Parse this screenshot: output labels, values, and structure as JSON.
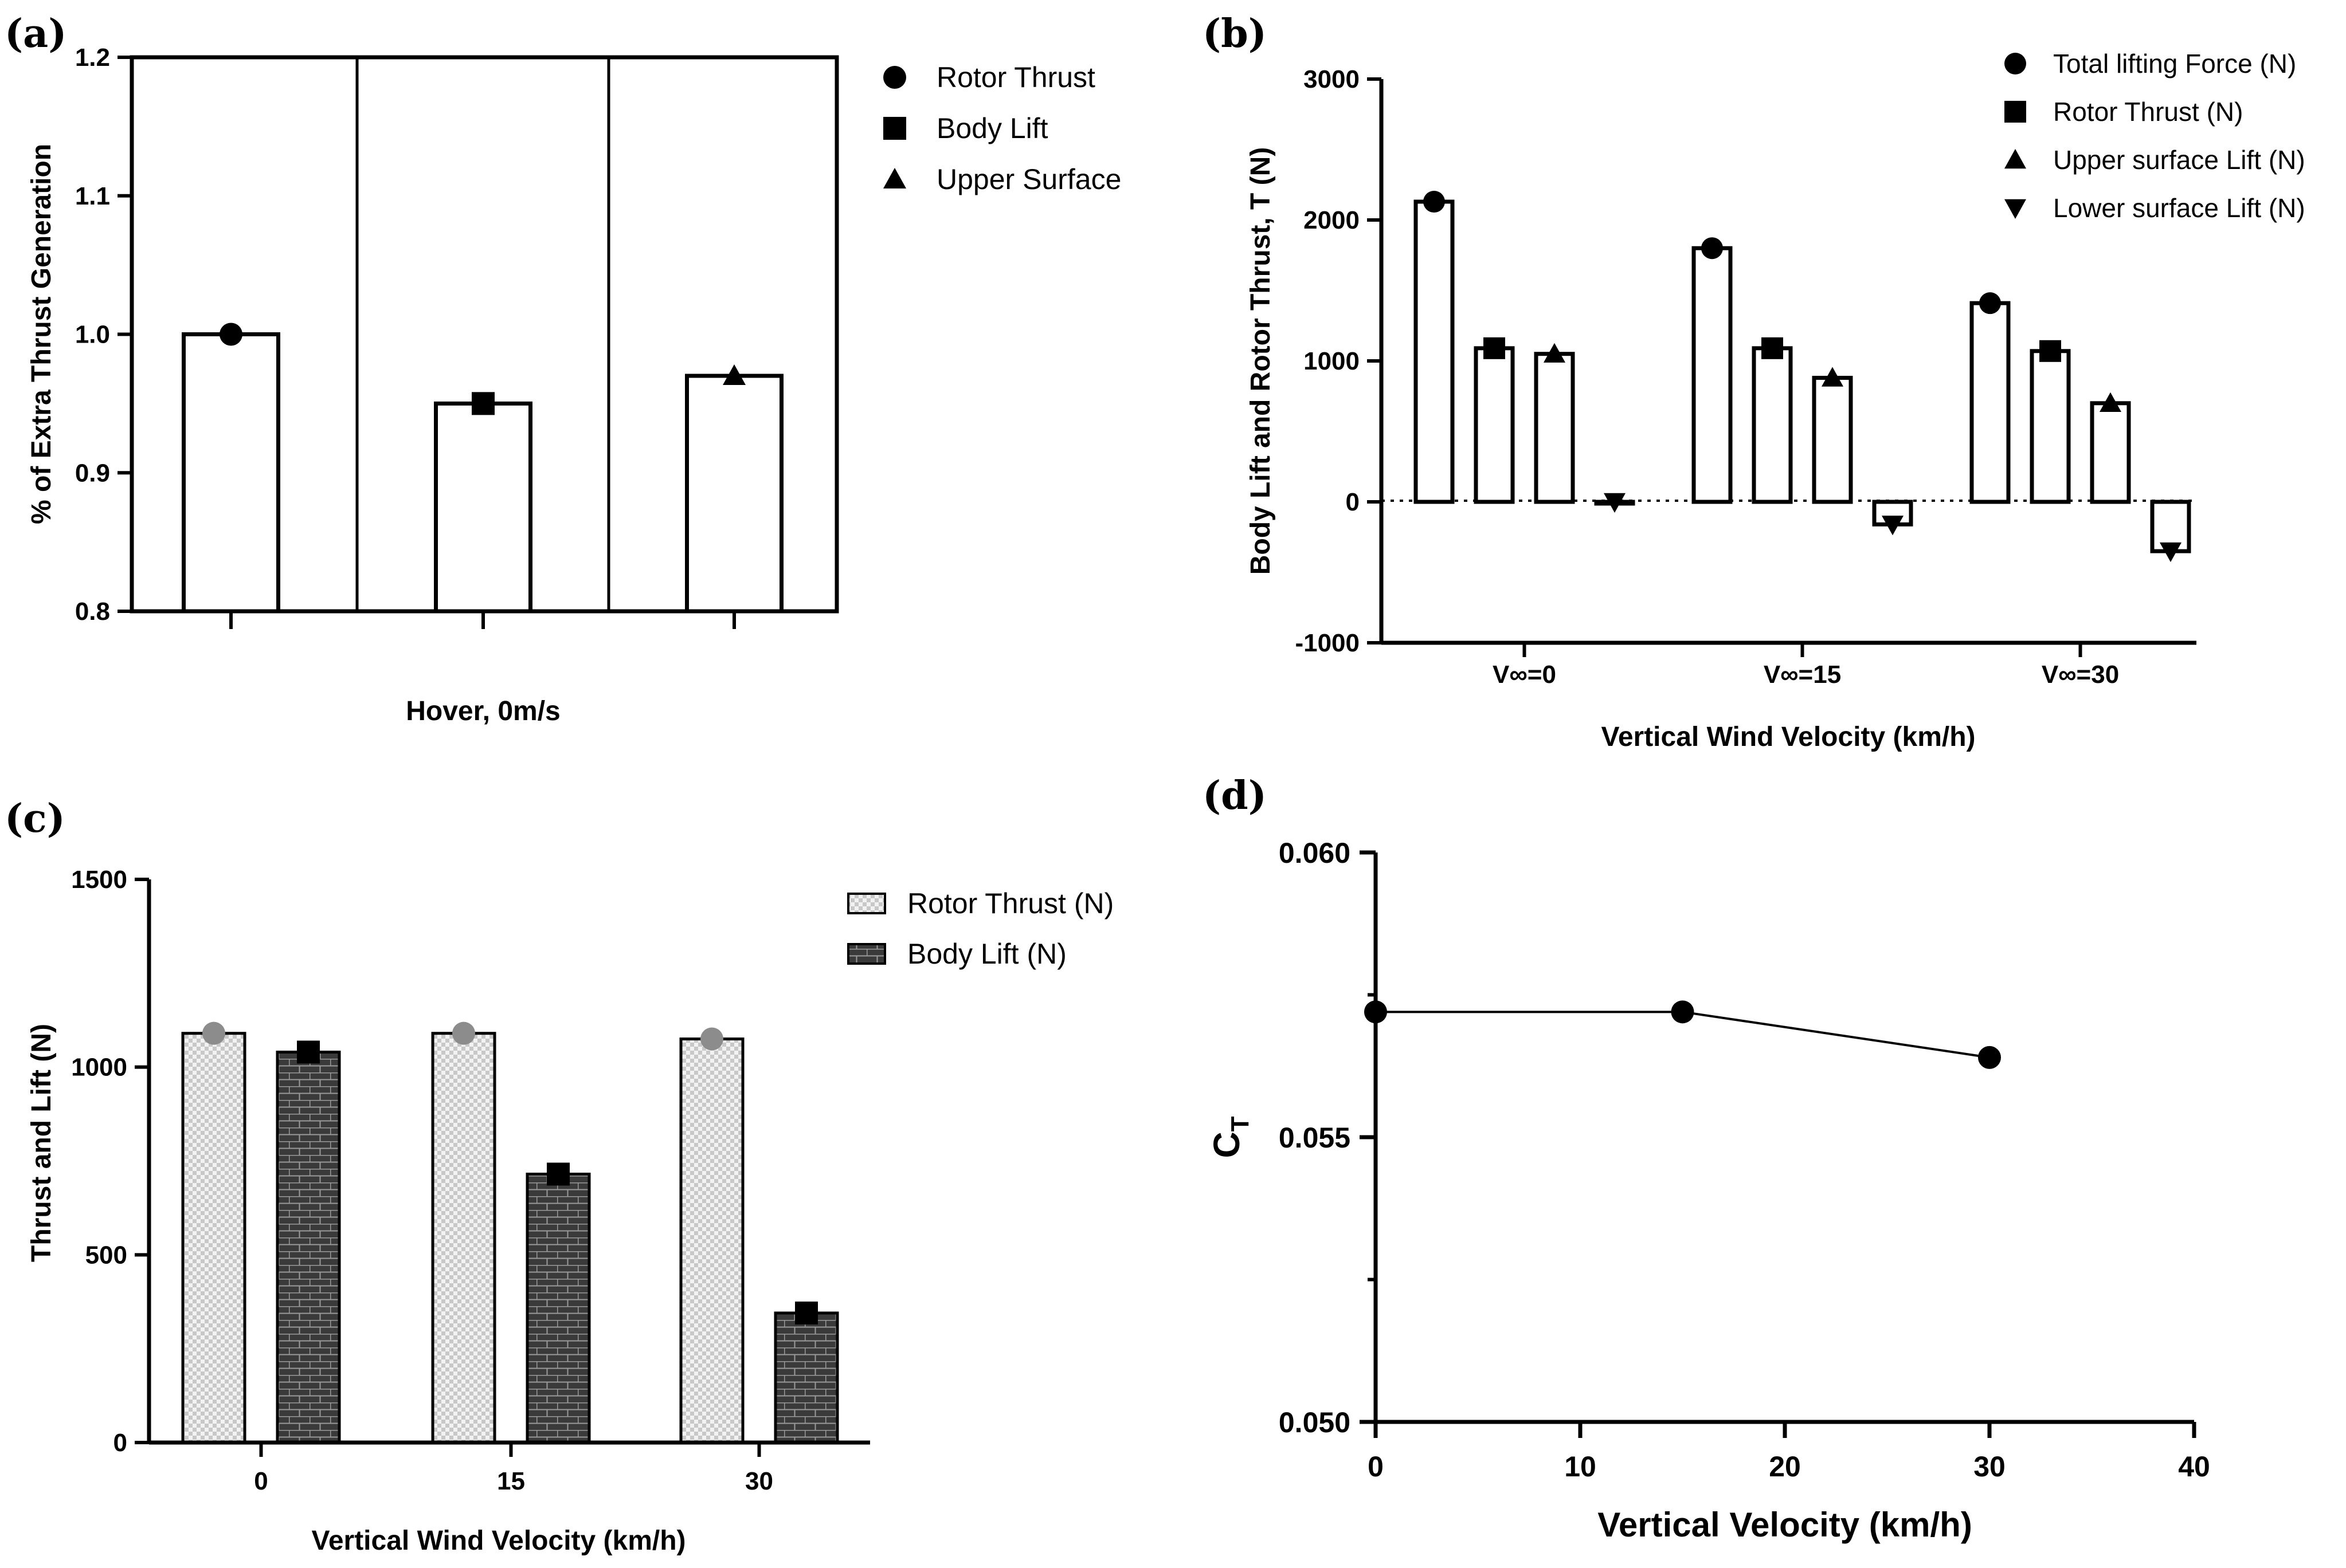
{
  "panels": {
    "a": {
      "label": "(a)"
    },
    "b": {
      "label": "(b)"
    },
    "c": {
      "label": "(c)"
    },
    "d": {
      "label": "(d)"
    }
  },
  "colors": {
    "ink": "#000000",
    "hatch_light": "#c8c8c8",
    "body_dark": "#3a3a3a",
    "marker_gray": "#8c8c8c"
  },
  "chart_data": [
    {
      "panel": "a",
      "type": "bar",
      "title": "",
      "xlabel": "Hover, 0m/s",
      "ylabel": "% of Extra Thrust  Generation",
      "ylim": [
        0.8,
        1.2
      ],
      "yticks": [
        "0.8",
        "0.9",
        "1.0",
        "1.1",
        "1.2"
      ],
      "categories": [
        "Rotor Thrust",
        "Body Lift",
        "Upper Surface"
      ],
      "values": [
        1.0,
        0.95,
        0.97
      ],
      "markers": [
        "circle",
        "square",
        "triangle"
      ],
      "legend": [
        "Rotor Thrust",
        "Body Lift",
        "Upper Surface"
      ],
      "legend_position": "right"
    },
    {
      "panel": "b",
      "type": "bar",
      "title": "",
      "xlabel": "Vertical Wind Velocity (km/h)",
      "ylabel": "Body Lift and Rotor Thrust, T (N)",
      "ylim": [
        -1000,
        3000
      ],
      "yticks": [
        "-1000",
        "0",
        "1000",
        "2000",
        "3000"
      ],
      "categories": [
        "V∞=0",
        "V∞=15",
        "V∞=30"
      ],
      "series": [
        {
          "name": "Total lifting Force (N)",
          "marker": "circle",
          "values": [
            2130,
            1800,
            1410
          ]
        },
        {
          "name": "Rotor Thrust (N)",
          "marker": "square",
          "values": [
            1090,
            1090,
            1070
          ]
        },
        {
          "name": "Upper surface Lift (N)",
          "marker": "triangle",
          "values": [
            1050,
            880,
            700
          ]
        },
        {
          "name": "Lower surface Lift (N)",
          "marker": "triangle-down",
          "values": [
            0,
            -160,
            -350
          ]
        }
      ],
      "zero_line": "dotted",
      "legend_position": "top-right"
    },
    {
      "panel": "c",
      "type": "bar",
      "title": "",
      "xlabel": "Vertical Wind Velocity (km/h)",
      "ylabel": "Thrust and Lift (N)",
      "ylim": [
        0,
        1500
      ],
      "yticks": [
        "0",
        "500",
        "1000",
        "1500"
      ],
      "categories": [
        "0",
        "15",
        "30"
      ],
      "series": [
        {
          "name": "Rotor Thrust (N)",
          "pattern": "checker",
          "marker": "circle",
          "values": [
            1090,
            1090,
            1075
          ]
        },
        {
          "name": "Body Lift (N)",
          "pattern": "brick",
          "marker": "square",
          "values": [
            1040,
            715,
            345
          ]
        }
      ],
      "legend_position": "right"
    },
    {
      "panel": "d",
      "type": "line",
      "title": "",
      "xlabel": "Vertical Velocity (km/h)",
      "ylabel": "CT",
      "ylabel_main": "C",
      "ylabel_sub": "T",
      "xlim": [
        0,
        40
      ],
      "ylim": [
        0.05,
        0.06
      ],
      "xticks": [
        "0",
        "10",
        "20",
        "30",
        "40"
      ],
      "yticks": [
        "0.050",
        "0.055",
        "0.060"
      ],
      "x": [
        0,
        15,
        30
      ],
      "y": [
        0.0572,
        0.0572,
        0.0564
      ],
      "marker": "circle"
    }
  ]
}
